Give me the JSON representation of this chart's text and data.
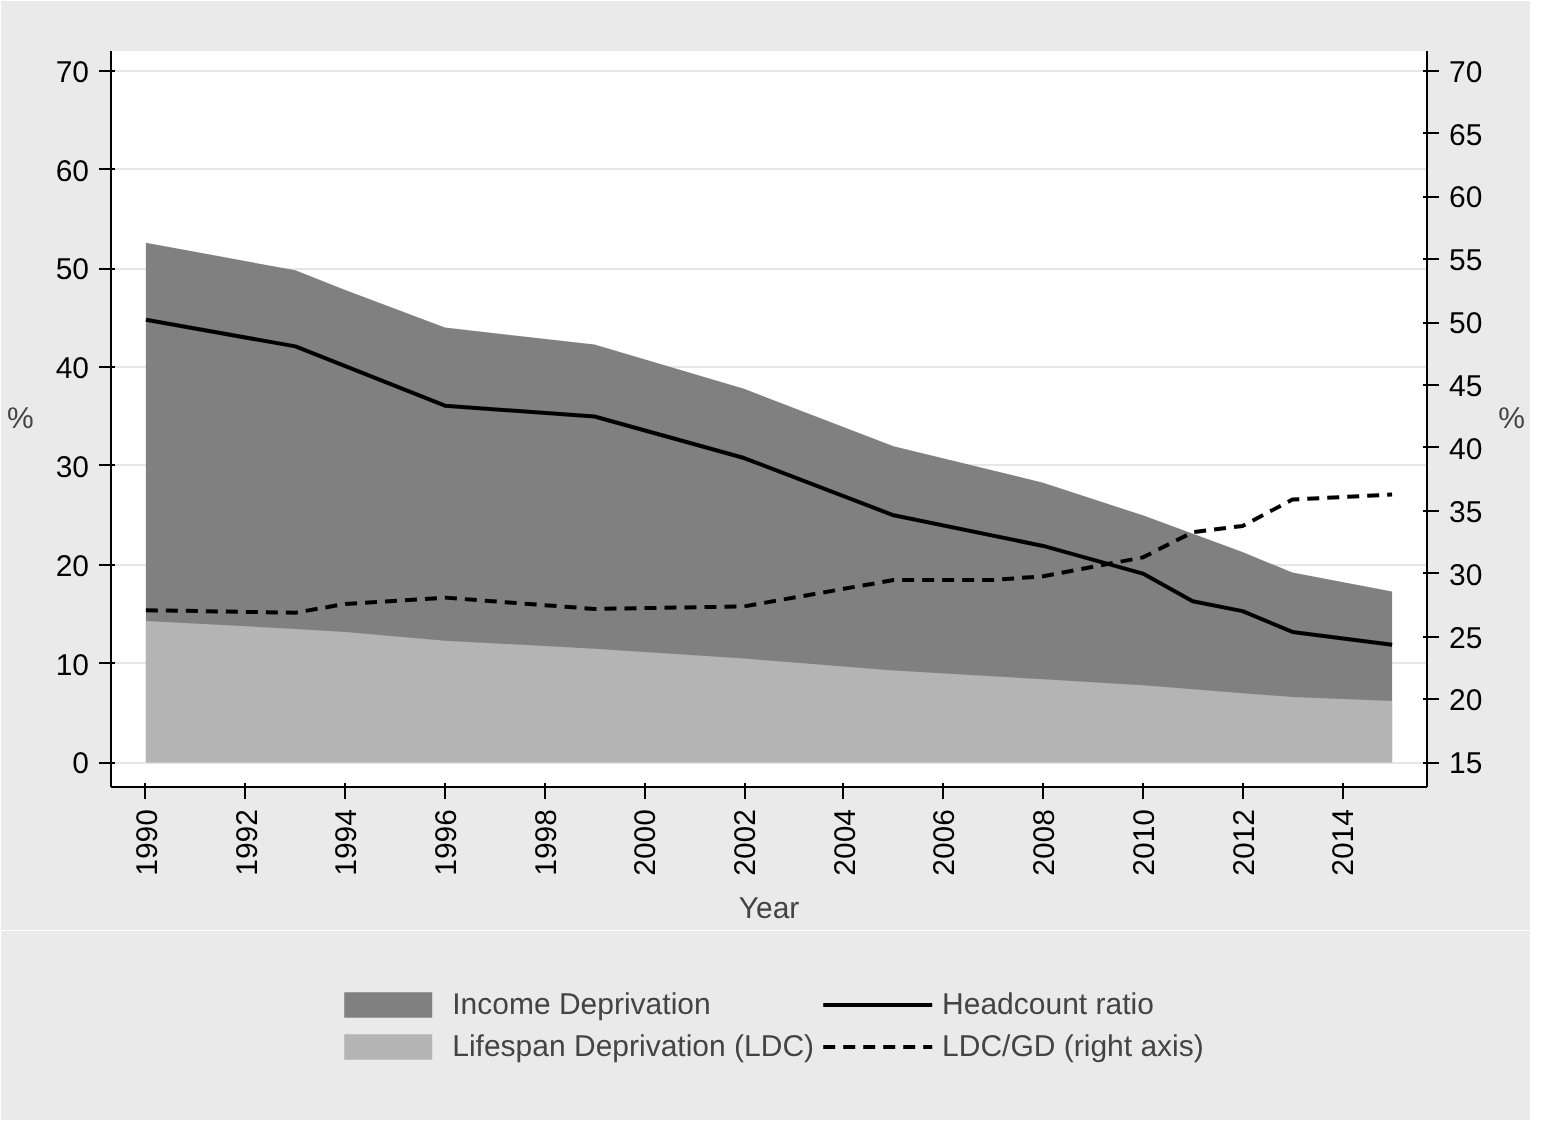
{
  "chart_data": {
    "type": "area",
    "xlabel": "Year",
    "ylabel": "%",
    "y2label": "%",
    "xlim": [
      1989.3,
      2015.7
    ],
    "xticks": [
      1990,
      1992,
      1994,
      1996,
      1998,
      2000,
      2002,
      2004,
      2006,
      2008,
      2010,
      2012,
      2014
    ],
    "ylim": [
      -2.5,
      72
    ],
    "yticks": [
      0,
      10,
      20,
      30,
      40,
      50,
      60,
      70
    ],
    "y2lim": [
      13.04,
      71.57
    ],
    "y2ticks": [
      15,
      20,
      25,
      30,
      35,
      40,
      45,
      50,
      55,
      60,
      65,
      70
    ],
    "grid": "y",
    "legend": "bottom",
    "series": [
      {
        "name": "Income Deprivation",
        "color": "#808080",
        "x": [
          1990,
          1993,
          1994,
          1996,
          1999,
          2002,
          2005,
          2008,
          2010,
          2012,
          2013,
          2015
        ],
        "values": [
          52.6,
          49.8,
          47.8,
          44.0,
          42.3,
          37.8,
          32.0,
          28.3,
          25.0,
          21.3,
          19.2,
          17.3
        ]
      },
      {
        "name": "Lifespan Deprivation (LDC)",
        "color": "#b4b4b4",
        "x": [
          1990,
          1993,
          1994,
          1996,
          1999,
          2002,
          2005,
          2008,
          2010,
          2012,
          2013,
          2015
        ],
        "values": [
          14.3,
          13.5,
          13.2,
          12.3,
          11.5,
          10.5,
          9.3,
          8.4,
          7.8,
          7.0,
          6.6,
          6.2
        ]
      },
      {
        "name": "Headcount ratio",
        "type": "line",
        "color": "#000000",
        "line_style": "solid",
        "x": [
          1990,
          1993,
          1996,
          1999,
          2002,
          2005,
          2008,
          2010,
          2011,
          2012,
          2013,
          2015
        ],
        "values": [
          44.8,
          42.1,
          36.1,
          35.0,
          30.8,
          25.0,
          21.9,
          19.1,
          16.3,
          15.3,
          13.2,
          11.9
        ]
      },
      {
        "name": "LDC/GD (right axis)",
        "type": "line",
        "axis": "y2",
        "color": "#000000",
        "line_style": "dashed",
        "x": [
          1990,
          1993,
          1994,
          1996,
          1999,
          2002,
          2004,
          2005,
          2007,
          2008,
          2010,
          2011,
          2012,
          2013,
          2015
        ],
        "values": [
          27.1,
          26.9,
          27.6,
          28.1,
          27.2,
          27.4,
          28.8,
          29.5,
          29.5,
          29.8,
          31.3,
          33.3,
          33.8,
          35.9,
          36.3
        ]
      }
    ]
  }
}
